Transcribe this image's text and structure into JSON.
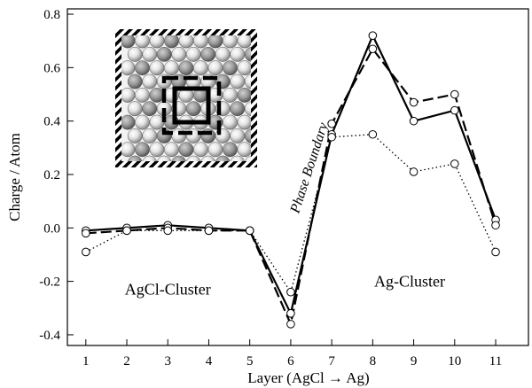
{
  "chart_data": {
    "type": "line",
    "xlabel": "Layer (AgCl → Ag)",
    "ylabel": "Charge / Atom",
    "xlim": [
      0.55,
      11.8
    ],
    "ylim": [
      -0.44,
      0.82
    ],
    "x_ticks": [
      1,
      2,
      3,
      4,
      5,
      6,
      7,
      8,
      9,
      10,
      11
    ],
    "y_ticks": [
      -0.4,
      -0.2,
      0.0,
      0.2,
      0.4,
      0.6,
      0.8
    ],
    "y_tick_labels": [
      "-0.4",
      "-0.2",
      "0.0",
      "0.2",
      "0.4",
      "0.6",
      "0.8"
    ],
    "grid": false,
    "marker": "open-circle",
    "series": [
      {
        "style": "solid",
        "x": [
          1,
          2,
          3,
          4,
          5,
          6,
          7,
          8,
          9,
          10,
          11
        ],
        "y": [
          -0.01,
          0.0,
          0.01,
          0.0,
          -0.01,
          -0.32,
          0.35,
          0.72,
          0.4,
          0.44,
          0.03
        ]
      },
      {
        "style": "dashed",
        "x": [
          1,
          2,
          3,
          4,
          5,
          6,
          7,
          8,
          9,
          10,
          11
        ],
        "y": [
          -0.02,
          -0.01,
          0.0,
          -0.01,
          -0.01,
          -0.36,
          0.39,
          0.67,
          0.47,
          0.5,
          0.01
        ]
      },
      {
        "style": "dotted",
        "x": [
          1,
          2,
          3,
          4,
          5,
          6,
          7,
          8,
          9,
          10,
          11
        ],
        "y": [
          -0.09,
          -0.01,
          -0.01,
          -0.01,
          -0.01,
          -0.24,
          0.34,
          0.35,
          0.21,
          0.24,
          -0.09
        ]
      }
    ],
    "annotations": [
      {
        "text": "AgCl-Cluster",
        "x": 3.0,
        "y": -0.25
      },
      {
        "text": "Ag-Cluster",
        "x": 8.9,
        "y": -0.22
      },
      {
        "text": "Phase Boundary",
        "x": 6.55,
        "y": 0.22,
        "rotation": -72
      }
    ],
    "inset": {
      "label": "cluster structure schematic",
      "position": "top-left"
    }
  }
}
